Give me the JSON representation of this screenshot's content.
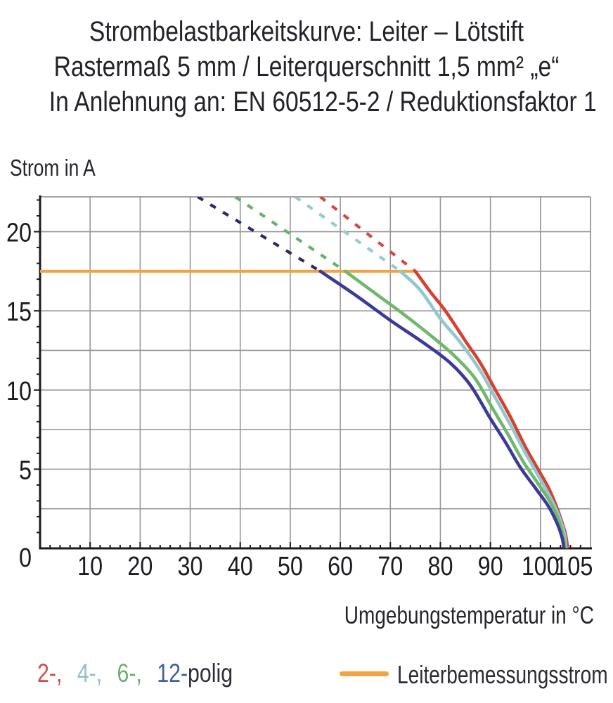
{
  "title": {
    "line1": "Strombelastbarkeitskurve: Leiter – Lötstift",
    "line2": "Rastermaß 5 mm / Leiterquerschnitt 1,5 mm² „e“",
    "line3": "In Anlehnung an: EN 60512-5-2 / Reduktionsfaktor 1"
  },
  "chart_data": {
    "type": "line",
    "ylabel": "Strom in A",
    "xlabel": "Umgebungstemperatur in °C",
    "xlim": [
      0,
      110
    ],
    "ylim": [
      0,
      22.2
    ],
    "x_ticks": [
      10,
      20,
      30,
      40,
      50,
      60,
      70,
      80,
      90,
      100,
      105
    ],
    "y_ticks": [
      0,
      5,
      10,
      15,
      20
    ],
    "x_gridline_step": 10,
    "y_gridline_step": 2.5,
    "x_minor_tick_step": 2,
    "y_minor_tick_step": 1,
    "grid": true,
    "grid_color": "#979797",
    "axis_color": "#1b1b1b",
    "rated_current": {
      "value": 17.5,
      "x_start": 0,
      "x_end": 75,
      "color": "#f2a343",
      "label": "Leiterbemessungsstrom"
    },
    "series": [
      {
        "name": "2-polig",
        "poles": 2,
        "color": "#d8402f",
        "dash_color": "#d4493f",
        "dashed_segment": [
          [
            56,
            22.2
          ],
          [
            75,
            17.5
          ]
        ],
        "solid_points": [
          [
            75,
            17.5
          ],
          [
            78,
            16.2
          ],
          [
            81,
            15.0
          ],
          [
            85,
            13.1
          ],
          [
            88,
            11.7
          ],
          [
            91,
            10.0
          ],
          [
            94,
            8.3
          ],
          [
            97,
            6.4
          ],
          [
            99.5,
            5.0
          ],
          [
            101.8,
            3.7
          ],
          [
            103.6,
            2.3
          ],
          [
            105.0,
            0.9
          ],
          [
            105.4,
            0
          ]
        ]
      },
      {
        "name": "4-polig",
        "poles": 4,
        "color": "#8fc9cf",
        "dash_color": "#93cbd1",
        "dashed_segment": [
          [
            51,
            22.2
          ],
          [
            72,
            17.5
          ]
        ],
        "solid_points": [
          [
            72,
            17.5
          ],
          [
            76,
            16.3
          ],
          [
            80,
            14.5
          ],
          [
            84,
            13.0
          ],
          [
            88,
            11.2
          ],
          [
            91,
            9.5
          ],
          [
            94,
            7.8
          ],
          [
            96.5,
            6.3
          ],
          [
            99,
            4.9
          ],
          [
            101.5,
            3.5
          ],
          [
            103.5,
            2.2
          ],
          [
            104.8,
            0.9
          ],
          [
            105.1,
            0
          ]
        ]
      },
      {
        "name": "6-polig",
        "poles": 6,
        "color": "#70b86c",
        "dash_color": "#66b167",
        "dashed_segment": [
          [
            39,
            22.2
          ],
          [
            61,
            17.5
          ]
        ],
        "solid_points": [
          [
            61,
            17.5
          ],
          [
            67,
            16.1
          ],
          [
            73,
            14.7
          ],
          [
            79,
            13.2
          ],
          [
            83,
            12.1
          ],
          [
            87,
            10.7
          ],
          [
            90.5,
            8.8
          ],
          [
            93.5,
            7.2
          ],
          [
            96.5,
            5.5
          ],
          [
            99.5,
            4.1
          ],
          [
            101.8,
            3.0
          ],
          [
            103.5,
            1.9
          ],
          [
            104.5,
            0.8
          ],
          [
            104.9,
            0
          ]
        ]
      },
      {
        "name": "12-polig",
        "poles": 12,
        "color": "#3c3a99",
        "dash_color": "#2b2b6b",
        "dashed_segment": [
          [
            31.5,
            22.2
          ],
          [
            56,
            17.5
          ]
        ],
        "solid_points": [
          [
            56,
            17.5
          ],
          [
            63,
            16.0
          ],
          [
            70,
            14.4
          ],
          [
            77,
            12.9
          ],
          [
            82,
            11.7
          ],
          [
            86,
            10.3
          ],
          [
            90,
            8.2
          ],
          [
            93,
            6.7
          ],
          [
            96,
            5.1
          ],
          [
            99,
            3.8
          ],
          [
            101.5,
            2.7
          ],
          [
            103.3,
            1.6
          ],
          [
            104.3,
            0.7
          ],
          [
            104.7,
            0
          ]
        ]
      }
    ]
  },
  "legend": {
    "pole_items": [
      {
        "label": "2-,",
        "color": "#cd4f47"
      },
      {
        "label": "4-,",
        "color": "#8fc0c8"
      },
      {
        "label": "6-,",
        "color": "#6fae72"
      },
      {
        "label": "12-",
        "color": "#3f5fa0"
      },
      {
        "label": "polig",
        "color": "#2e2e38"
      }
    ],
    "rated_label": "Leiterbemessungsstrom"
  }
}
